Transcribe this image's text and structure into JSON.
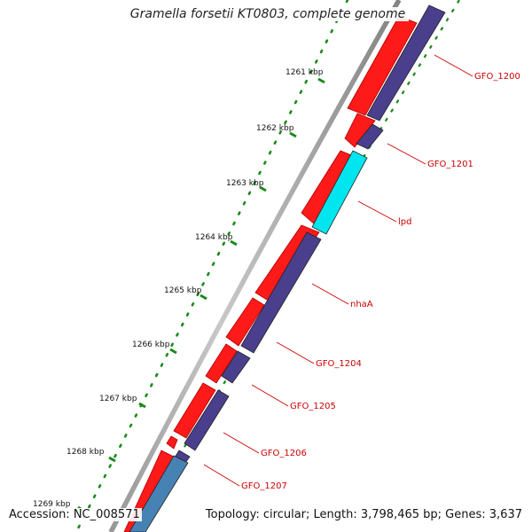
{
  "title": "Gramella forsetii KT0803, complete genome",
  "footer": {
    "accession": "Accession: NC_008571",
    "summary": "Topology: circular; Length: 3,798,465 bp; Genes: 3,637"
  },
  "ruler": {
    "unit": "kbp",
    "ticks": [
      "1261 kbp",
      "1262 kbp",
      "1263 kbp",
      "1264 kbp",
      "1265 kbp",
      "1266 kbp",
      "1267 kbp",
      "1268 kbp",
      "1269 kbp"
    ]
  },
  "genes": [
    {
      "name": "GFO_1200",
      "color": "#4a3f8c"
    },
    {
      "name": "GFO_1201",
      "color": "#4a3f8c"
    },
    {
      "name": "lpd",
      "color": "#00e5ee"
    },
    {
      "name": "nhaA",
      "color": "#4a3f8c"
    },
    {
      "name": "GFO_1204",
      "color": "#4a3f8c"
    },
    {
      "name": "GFO_1205",
      "color": "#4a3f8c"
    },
    {
      "name": "GFO_1206",
      "color": "#4a3f8c"
    },
    {
      "name": "GFO_1207",
      "color": "#4682b4"
    }
  ],
  "colors": {
    "forward_strand": "#ff0000",
    "label": "#cc0000",
    "ruler": "#1a8a1a",
    "backbone": "#909090"
  }
}
